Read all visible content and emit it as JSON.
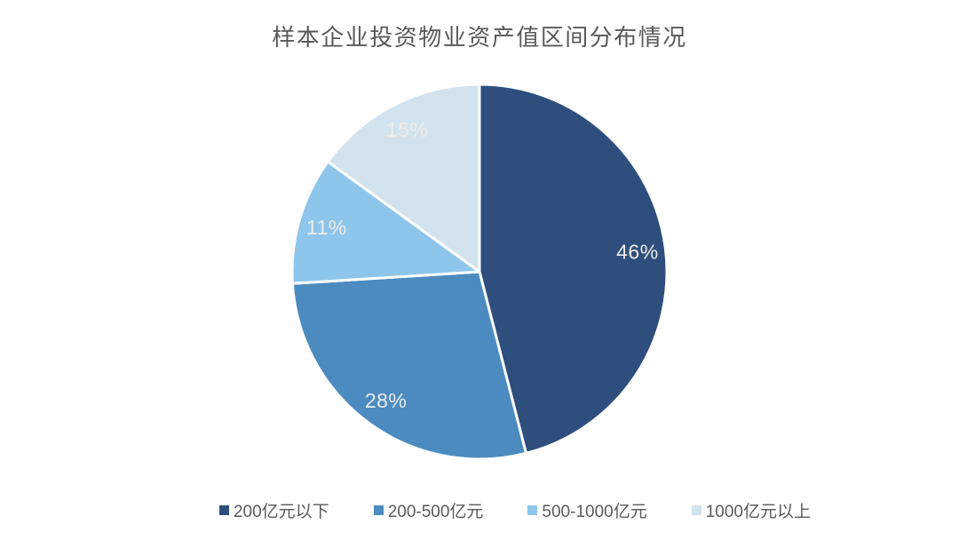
{
  "page": {
    "background_color": "#FFFFFF"
  },
  "chart_data": {
    "type": "pie",
    "title": "样本企业投资物业资产值区间分布情况",
    "categories": [
      "200亿元以下",
      "200-500亿元",
      "500-1000亿元",
      "1000亿元以上"
    ],
    "values": [
      46,
      28,
      11,
      15
    ],
    "data_labels": [
      "46%",
      "28%",
      "11%",
      "15%"
    ],
    "unit": "%",
    "colors": [
      "#2E4E7E",
      "#4C8BC0",
      "#8EC6EB",
      "#D3E3EE"
    ],
    "slice_label_color": "#EDECE8",
    "title_color": "#595959",
    "legend_text_color": "#595959",
    "separator_color": "#FFFFFF",
    "start_angle": "top",
    "direction": "clockwise",
    "legend_position": "bottom",
    "grid": "off"
  }
}
